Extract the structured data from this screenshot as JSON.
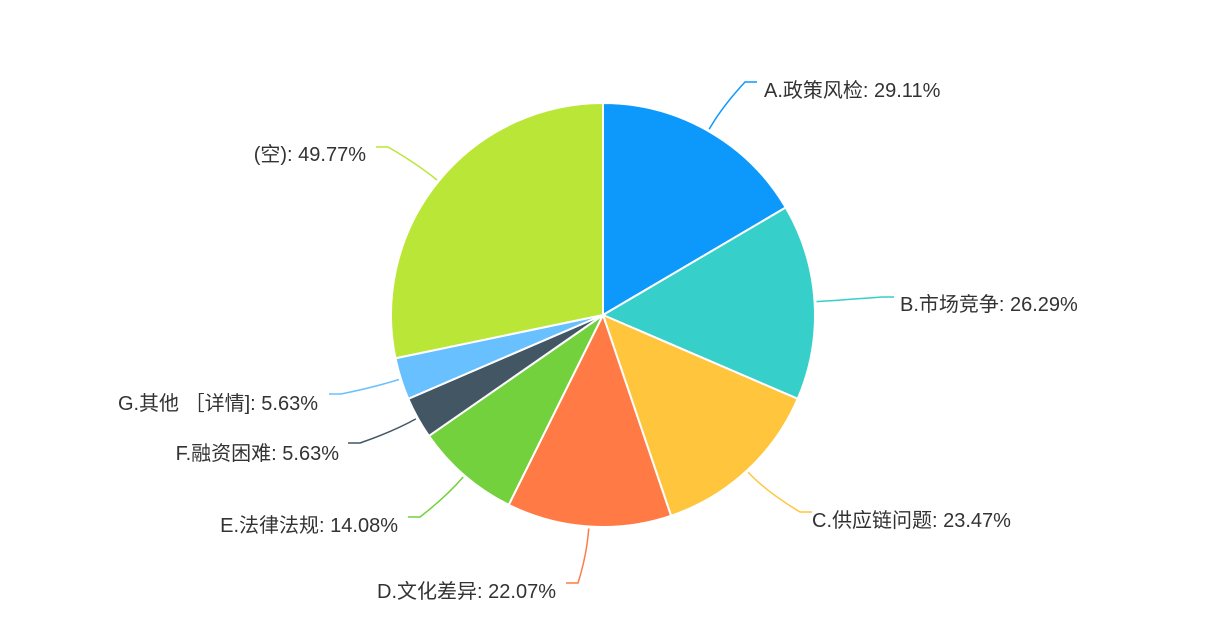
{
  "chart_data": {
    "type": "pie",
    "title": "",
    "slices": [
      {
        "label": "A.政策风检: 29.11%",
        "value": 29.11,
        "color": "#0d99fc"
      },
      {
        "label": "B.市场竞争: 26.29%",
        "value": 26.29,
        "color": "#36cfc9"
      },
      {
        "label": "C.供应链问题: 23.47%",
        "value": 23.47,
        "color": "#ffc53d"
      },
      {
        "label": "D.文化差异: 22.07%",
        "value": 22.07,
        "color": "#ff7a45"
      },
      {
        "label": "E.法律法规: 14.08%",
        "value": 14.08,
        "color": "#73d13d"
      },
      {
        "label": "F.融资困难: 5.63%",
        "value": 5.63,
        "color": "#435663"
      },
      {
        "label": "G.其他 ［详情]: 5.63%",
        "value": 5.63,
        "color": "#69c0ff"
      },
      {
        "label": "(空): 49.77%",
        "value": 49.77,
        "color": "#bae637"
      }
    ]
  }
}
